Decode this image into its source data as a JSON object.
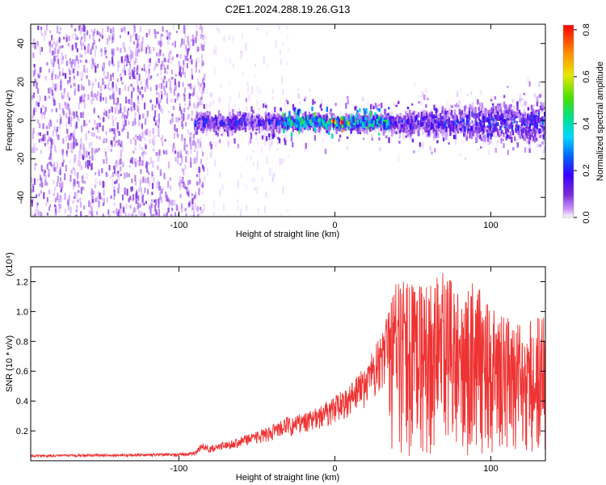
{
  "figure": {
    "title": "C2E1.2024.288.19.26.G13"
  },
  "chart_data": [
    {
      "type": "heatmap",
      "xlabel": "Height of straight line (km)",
      "ylabel": "Frequency (Hz)",
      "xlim": [
        -195,
        135
      ],
      "ylim": [
        -50,
        50
      ],
      "x_ticks": [
        -100,
        0,
        100
      ],
      "y_ticks": [
        -40,
        -20,
        0,
        20,
        40
      ],
      "colorbar": {
        "label": "Normalized spectral amplitude",
        "range": [
          0.0,
          0.82
        ],
        "ticks": [
          0.0,
          0.2,
          0.4,
          0.6,
          0.8
        ],
        "colormap": [
          "#ffffff",
          "#cc99ff",
          "#7a2bd6",
          "#3a00ff",
          "#0066ff",
          "#00d8ff",
          "#00e08a",
          "#46e000",
          "#e8e800",
          "#ff8800",
          "#ff0000"
        ]
      },
      "band": {
        "center_freq": 0,
        "noise_region_x": [
          -195,
          -90
        ],
        "signal_region_x": [
          -90,
          135
        ],
        "peak_x": 0,
        "peak_amplitude": 0.8
      }
    },
    {
      "type": "line",
      "xlabel": "Height of straight line (km)",
      "ylabel": "SNR (10 * v/v)",
      "y_multiplier": "(x10⁴)",
      "xlim": [
        -195,
        135
      ],
      "ylim": [
        0,
        1.3
      ],
      "x_ticks": [
        -100,
        0,
        100
      ],
      "y_ticks": [
        0.2,
        0.4,
        0.6,
        0.8,
        1.0,
        1.2
      ],
      "color": "#ee3333",
      "envelope": {
        "x": [
          -195,
          -100,
          -90,
          -85,
          -80,
          -70,
          -60,
          -50,
          -40,
          -30,
          -20,
          -10,
          0,
          10,
          20,
          30,
          35,
          40,
          50,
          60,
          70,
          80,
          90,
          100,
          110,
          120,
          130
        ],
        "y": [
          0.04,
          0.05,
          0.06,
          0.12,
          0.1,
          0.13,
          0.16,
          0.2,
          0.24,
          0.3,
          0.32,
          0.36,
          0.44,
          0.52,
          0.64,
          0.86,
          1.05,
          1.25,
          1.18,
          1.22,
          1.26,
          1.14,
          1.2,
          1.05,
          0.96,
          0.9,
          0.98
        ]
      }
    }
  ]
}
